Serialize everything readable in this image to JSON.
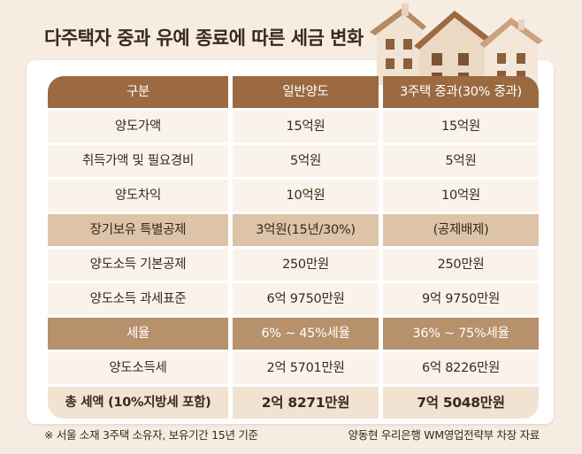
{
  "title": "다주택자 중과 유예 종료에 따른 세금 변화",
  "table": {
    "headers": [
      "구분",
      "일반양도",
      "3주택 중과(30% 중과)"
    ],
    "rows": [
      {
        "label": "양도가액",
        "general": "15억원",
        "heavy": "15억원",
        "style": "plain"
      },
      {
        "label": "취득가액 및 필요경비",
        "general": "5억원",
        "heavy": "5억원",
        "style": "plain"
      },
      {
        "label": "양도차익",
        "general": "10억원",
        "heavy": "10억원",
        "style": "plain"
      },
      {
        "label": "장기보유 특별공제",
        "general": "3억원(15년/30%)",
        "heavy": "(공제배제)",
        "style": "tan"
      },
      {
        "label": "양도소득 기본공제",
        "general": "250만원",
        "heavy": "250만원",
        "style": "plain"
      },
      {
        "label": "양도소득 과세표준",
        "general": "6억 9750만원",
        "heavy": "9억 9750만원",
        "style": "plain"
      },
      {
        "label": "세율",
        "general": "6% ~ 45%세율",
        "heavy": "36% ~ 75%세율",
        "style": "brown"
      },
      {
        "label": "양도소득세",
        "general": "2억 5701만원",
        "heavy": "6억 8226만원",
        "style": "plain"
      },
      {
        "label": "총 세액 (10%지방세 포함)",
        "general": "2억 8271만원",
        "heavy": "7억 5048만원",
        "style": "total"
      }
    ]
  },
  "footnote_left": "※ 서울 소재 3주택 소유자, 보유기간 15년 기준",
  "footnote_right": "양동현 우리은행 WM영업전략부 차장 자료",
  "colors": {
    "background": "#f6ece2",
    "header": "#9b6a41",
    "row_plain": "#faf3ec",
    "row_tan": "#ddc3a7",
    "row_brown": "#b7906c",
    "row_total": "#f2e2d1"
  }
}
